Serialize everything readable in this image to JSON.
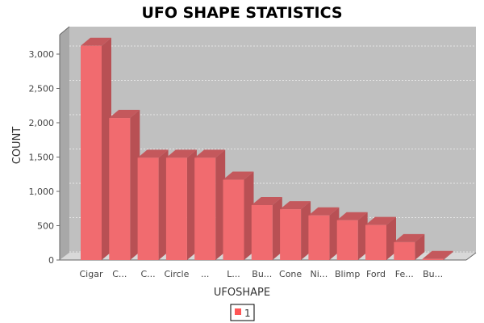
{
  "chart_data": {
    "type": "bar",
    "title": "UFO SHAPE STATISTICS",
    "xlabel": "UFOSHAPE",
    "ylabel": "COUNT",
    "categories": [
      "Cigar",
      "C...",
      "C...",
      "Circle",
      "...",
      "L...",
      "Bu...",
      "Cone",
      "Ni...",
      "Blimp",
      "Ford",
      "Fe...",
      "Bu..."
    ],
    "series": [
      {
        "name": "1",
        "values": [
          3120,
          2070,
          1490,
          1490,
          1490,
          1170,
          800,
          740,
          650,
          580,
          510,
          260,
          15
        ]
      }
    ],
    "yticks": [
      "0",
      "500",
      "1,000",
      "1,500",
      "2,000",
      "2,500",
      "3,000"
    ],
    "ylim": [
      0,
      3000
    ],
    "grid": true,
    "legend": "bottom-center",
    "colors": {
      "bar": "#f16b6f",
      "bar_side": "#b85054",
      "bar_top": "#c4585c",
      "plot_bg": "#c0c0c0",
      "legend_swatch": "#ff5555"
    }
  }
}
